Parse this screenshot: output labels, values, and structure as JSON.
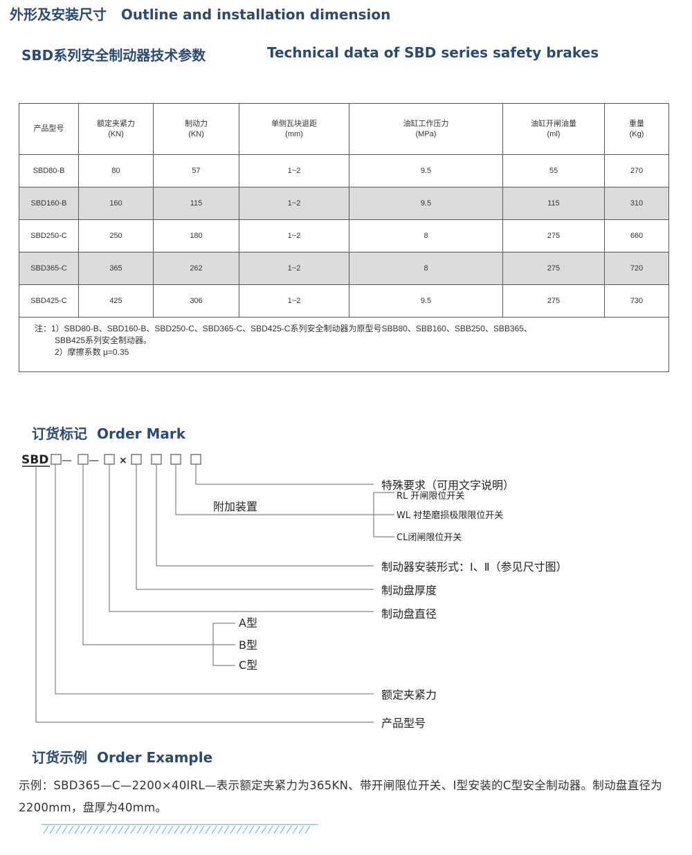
{
  "header": {
    "title_cn": "外形及安装尺寸",
    "title_en": "Outline and installation dimension"
  },
  "section": {
    "title_cn": "SBD系列安全制动器技术参数",
    "title_en": "Technical data of SBD series safety brakes"
  },
  "table": {
    "headers": [
      [
        "产品型号",
        ""
      ],
      [
        "额定夹紧力",
        "(KN)"
      ],
      [
        "制动力",
        "(KN)"
      ],
      [
        "单侧瓦块退距",
        "(mm)"
      ],
      [
        "油缸工作压力",
        "(MPa)"
      ],
      [
        "油缸开闸油量",
        "(ml)"
      ],
      [
        "重量",
        "(Kg)"
      ]
    ],
    "rows": [
      [
        "SBD80-B",
        "80",
        "57",
        "1~2",
        "9.5",
        "55",
        "270"
      ],
      [
        "SBD160-B",
        "160",
        "115",
        "1~2",
        "9.5",
        "115",
        "310"
      ],
      [
        "SBD250-C",
        "250",
        "180",
        "1~2",
        "8",
        "275",
        "660"
      ],
      [
        "SBD365-C",
        "365",
        "262",
        "1~2",
        "8",
        "275",
        "720"
      ],
      [
        "SBD425-C",
        "425",
        "306",
        "1~2",
        "9.5",
        "275",
        "730"
      ]
    ],
    "notes": [
      "注：1）SBD80-B、SBD160-B、SBD250-C、SBD365-C、SBD425-C系列安全制动器为原型号SBB80、SBB160、SBB250、SBB365、",
      "SBB425系列安全制动器。",
      "2）摩擦系数 μ=0.35"
    ]
  },
  "order_mark": {
    "title_cn": "订货标记",
    "title_en": "Order Mark",
    "prefix": "SBD",
    "dash": "—",
    "times": "×",
    "labels": {
      "special": "特殊要求（可用文字说明）",
      "addon": "附加装置",
      "rl": "RL 开闸限位开关",
      "wl": "WL 衬垫磨损极限限位开关",
      "cl": "CL闭闸限位开关",
      "mount": "制动器安装形式：Ⅰ、Ⅱ（参见尺寸图）",
      "thickness": "制动盘厚度",
      "diameter": "制动盘直径",
      "type_a": "A型",
      "type_b": "B型",
      "type_c": "C型",
      "clamp": "额定夹紧力",
      "model": "产品型号"
    }
  },
  "order_example": {
    "title_cn": "订货示例",
    "title_en": "Order Example",
    "text": "示例：SBD365—C—2200×40ⅠRL—表示额定夹紧力为365KN、带开闸限位开关、Ⅰ型安装的C型安全制动器。制动盘直径为2200mm，盘厚为40mm。"
  },
  "colors": {
    "heading": "#2a4a72",
    "row_alt": "#dcdcdc",
    "hatch": "#5aa9d6"
  }
}
